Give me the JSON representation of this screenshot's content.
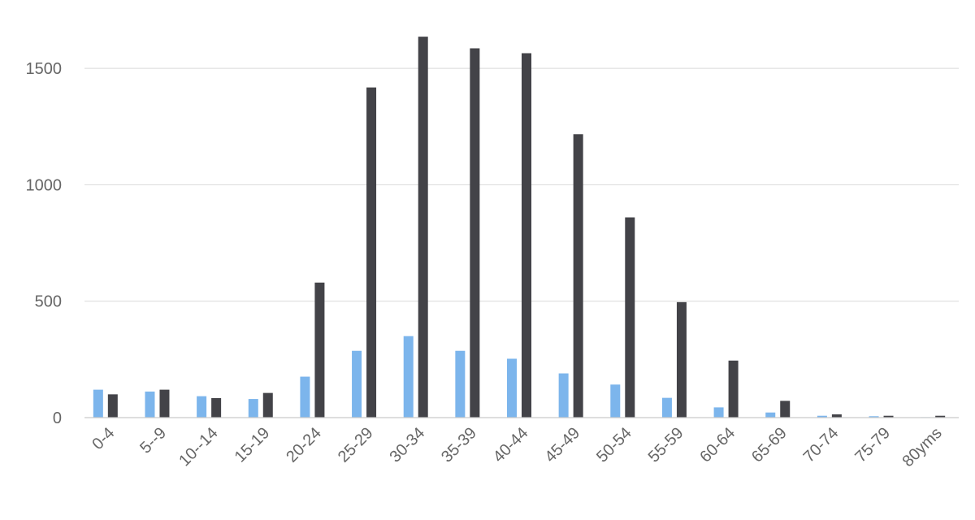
{
  "chart_data": {
    "type": "bar",
    "categories": [
      "0-4",
      "5--9",
      "10--14",
      "15-19",
      "20-24",
      "25-29",
      "30-34",
      "35-39",
      "40-44",
      "45-49",
      "50-54",
      "55-59",
      "60-64",
      "65-69",
      "70-74",
      "75-79",
      "80yms"
    ],
    "series": [
      {
        "values": [
          120,
          112,
          92,
          80,
          176,
          287,
          350,
          287,
          253,
          190,
          142,
          85,
          44,
          22,
          8,
          6,
          2
        ],
        "color": "#7cb5ec"
      },
      {
        "values": [
          100,
          120,
          84,
          106,
          580,
          1418,
          1636,
          1586,
          1565,
          1217,
          860,
          496,
          245,
          72,
          14,
          8,
          8
        ],
        "color": "#434348"
      }
    ],
    "yticks": [
      0,
      500,
      1000,
      1500
    ],
    "ylim": [
      0,
      1640
    ],
    "grid": true,
    "legend": "none"
  }
}
